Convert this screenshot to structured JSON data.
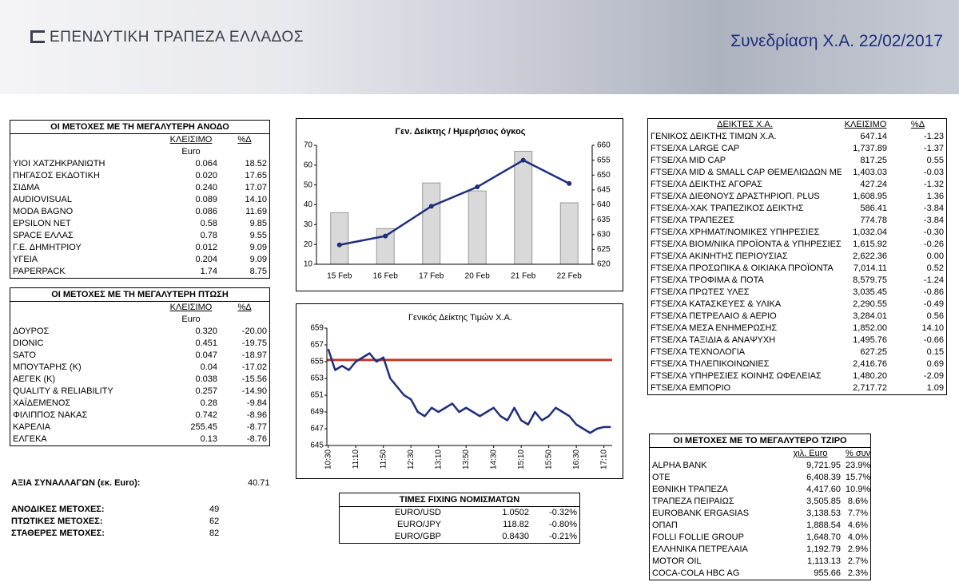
{
  "header": {
    "logo": "ΕΠΕΝΔΥΤΙΚΗ ΤΡΑΠΕΖΑ ΕΛΛΑΔΟΣ",
    "title": "Συνεδρίαση Χ.Α. 22/02/2017"
  },
  "gainers": {
    "title": "ΟΙ ΜΕΤΟΧΕΣ ΜΕ ΤΗ ΜΕΓΑΛΥΤΕΡΗ ΑΝΟΔΟ",
    "columns": [
      "ΚΛΕΙΣΙΜΟ",
      "%Δ"
    ],
    "unit": "Euro",
    "rows": [
      [
        "ΥΙΟΙ ΧΑΤΖΗΚΡΑΝΙΩΤΗ",
        "0.064",
        "18.52"
      ],
      [
        "ΠΗΓΑΣΟΣ ΕΚΔΟΤΙΚΗ",
        "0.020",
        "17.65"
      ],
      [
        "ΣΙΔΜΑ",
        "0.240",
        "17.07"
      ],
      [
        "AUDIOVISUAL",
        "0.089",
        "14.10"
      ],
      [
        "MODA BAGNO",
        "0.086",
        "11.69"
      ],
      [
        "EPSILON NET",
        "0.58",
        "9.85"
      ],
      [
        "SPACE ΕΛΛΑΣ",
        "0.78",
        "9.55"
      ],
      [
        "Γ.Ε. ΔΗΜΗΤΡΙΟΥ",
        "0.012",
        "9.09"
      ],
      [
        "ΥΓΕΙΑ",
        "0.204",
        "9.09"
      ],
      [
        "PAPERPACK",
        "1.74",
        "8.75"
      ]
    ]
  },
  "losers": {
    "title": "ΟΙ ΜΕΤΟΧΕΣ ΜΕ ΤΗ ΜΕΓΑΛΥΤΕΡΗ ΠΤΩΣΗ",
    "columns": [
      "ΚΛΕΙΣΙΜΟ",
      "%Δ"
    ],
    "unit": "Euro",
    "rows": [
      [
        "ΔΟΥΡΟΣ",
        "0.320",
        "-20.00"
      ],
      [
        "DIONIC",
        "0.451",
        "-19.75"
      ],
      [
        "SATO",
        "0.047",
        "-18.97"
      ],
      [
        "ΜΠΟΥΤΑΡΗΣ (Κ)",
        "0.04",
        "-17.02"
      ],
      [
        "ΑΕΓΕΚ (Κ)",
        "0.038",
        "-15.56"
      ],
      [
        "QUALITY & RELIABILITY",
        "0.257",
        "-14.90"
      ],
      [
        "ΧΑΪΔΕΜΕΝΟΣ",
        "0.28",
        "-9.84"
      ],
      [
        "ΦΙΛΙΠΠΟΣ ΝΑΚΑΣ",
        "0.742",
        "-8.96"
      ],
      [
        "ΚΑΡΕΛΙΑ",
        "255.45",
        "-8.77"
      ],
      [
        "ΕΛΓΕΚΑ",
        "0.13",
        "-8.76"
      ]
    ]
  },
  "stats": [
    [
      "ΑΞΙΑ ΣΥΝΑΛΛΑΓΩΝ (εκ. Euro):",
      "40.71"
    ],
    [
      "ΑΝΟΔΙΚΕΣ ΜΕΤΟΧΕΣ:",
      "49"
    ],
    [
      "ΠΤΩΤΙΚΕΣ ΜΕΤΟΧΕΣ:",
      "62"
    ],
    [
      "ΣΤΑΘΕΡΕΣ ΜΕΤΟΧΕΣ:",
      "82"
    ]
  ],
  "fixing": {
    "title": "TIMEΣ FIXING ΝΟΜΙΣΜΑΤΩΝ",
    "rows": [
      [
        "EURO/USD",
        "1.0502",
        "-0.32%"
      ],
      [
        "EURO/JPY",
        "118.82",
        "-0.80%"
      ],
      [
        "EURO/GBP",
        "0.8430",
        "-0.21%"
      ]
    ]
  },
  "indices": {
    "columns": [
      "ΔΕΙΚΤΕΣ Χ.Α.",
      "ΚΛΕΙΣΙΜΟ",
      "%Δ"
    ],
    "rows": [
      [
        "ΓΕΝΙΚΟΣ ΔΕΙΚΤΗΣ ΤΙΜΩΝ Χ.Α.",
        "647.14",
        "-1.23"
      ],
      [
        "FTSE/XA LARGE CAP",
        "1,737.89",
        "-1.37"
      ],
      [
        "FTSE/XA MID CAP",
        "817.25",
        "0.55"
      ],
      [
        "FTSE/XA MID & SMALL CAP ΘΕΜΕΛΙΩΔΩΝ ΜΕ",
        "1,403.03",
        "-0.03"
      ],
      [
        "FTSE/XA ΔΕΙΚΤΗΣ ΑΓΟΡΑΣ",
        "427.24",
        "-1.32"
      ],
      [
        "FTSE/XA ΔΙΕΘΝΟΥΣ ΔΡΑΣΤΗΡΙΟΠ. PLUS",
        "1,608.95",
        "1.36"
      ],
      [
        "FTSE/XA-XAK ΤΡΑΠΕΖΙΚΟΣ ΔΕΙΚΤΗΣ",
        "586.41",
        "-3.84"
      ],
      [
        "FTSE/XA ΤΡΑΠΕΖΕΣ",
        "774.78",
        "-3.84"
      ],
      [
        "FTSE/XA ΧΡΗΜΑΤ/ΝΟΜΙΚΕΣ ΥΠΗΡΕΣΙΕΣ",
        "1,032.04",
        "-0.30"
      ],
      [
        "FTSE/XA ΒΙΟΜ/ΝΙΚΑ ΠΡΟΪΟΝΤΑ & ΥΠΗΡΕΣΙΕΣ",
        "1,615.92",
        "-0.26"
      ],
      [
        "FTSE/XA ΑΚΙΝΗΤΗΣ ΠΕΡΙΟΥΣΙΑΣ",
        "2,622.36",
        "0.00"
      ],
      [
        "FTSE/XA ΠΡΟΣΩΠΙΚΑ & ΟΙΚΙΑΚΑ ΠΡΟΪΟΝΤΑ",
        "7,014.11",
        "0.52"
      ],
      [
        "FTSE/XA ΤΡΟΦΙΜΑ & ΠΟΤΑ",
        "8,579.75",
        "-1.24"
      ],
      [
        "FTSE/XA ΠΡΩΤΕΣ ΥΛΕΣ",
        "3,035.45",
        "-0.86"
      ],
      [
        "FTSE/XA ΚΑΤΑΣΚΕΥΕΣ & ΥΛΙΚΑ",
        "2,290.55",
        "-0.49"
      ],
      [
        "FTSE/XA ΠΕΤΡΕΛΑΙΟ & ΑΕΡΙΟ",
        "3,284.01",
        "0.56"
      ],
      [
        "FTSE/XA ΜΕΣΑ ΕΝΗΜΕΡΩΣΗΣ",
        "1,852.00",
        "14.10"
      ],
      [
        "FTSE/XA ΤΑΞΙΔΙΑ & ΑΝΑΨΥΧΗ",
        "1,495.76",
        "-0.66"
      ],
      [
        "FTSE/XA ΤΕΧΝΟΛΟΓΙΑ",
        "627.25",
        "0.15"
      ],
      [
        "FTSE/XA ΤΗΛΕΠΙΚΟΙΝΩΝΙΕΣ",
        "2,416.76",
        "0.69"
      ],
      [
        "FTSE/XA ΥΠΗΡΕΣΙΕΣ ΚΟΙΝΗΣ ΩΦΕΛΕΙΑΣ",
        "1,480.20",
        "-2.09"
      ],
      [
        "FTSE/XA ΕΜΠΟΡΙΟ",
        "2,717.72",
        "1.09"
      ]
    ]
  },
  "turnover": {
    "title": "ΟΙ ΜΕΤΟΧΕΣ ΜΕ ΤΟ ΜΕΓΑΛΥΤΕΡΟ ΤΖΙΡΟ",
    "columns": [
      "χιλ. Euro",
      "% συν."
    ],
    "rows": [
      [
        "ALPHA BANK",
        "9,721.95",
        "23.9%"
      ],
      [
        "ΟΤΕ",
        "6,408.39",
        "15.7%"
      ],
      [
        "ΕΘΝΙΚΗ ΤΡΑΠΕΖΑ",
        "4,417.60",
        "10.9%"
      ],
      [
        "ΤΡΑΠΕΖΑ ΠΕΙΡΑΙΩΣ",
        "3,505.85",
        "8.6%"
      ],
      [
        "EUROBANK ERGASIAS",
        "3,138.53",
        "7.7%"
      ],
      [
        "ΟΠΑΠ",
        "1,888.54",
        "4.6%"
      ],
      [
        "FOLLI FOLLIE GROUP",
        "1,648.70",
        "4.0%"
      ],
      [
        "ΕΛΛΗΝΙΚΑ ΠΕΤΡΕΛΑΙΑ",
        "1,192.79",
        "2.9%"
      ],
      [
        "MOTOR OIL",
        "1,113.13",
        "2.7%"
      ],
      [
        "COCA-COLA HBC AG",
        "955.66",
        "2.3%"
      ]
    ]
  },
  "chart_data": [
    {
      "type": "bar_line",
      "title": "Γεν. Δείκτης / Ημερήσιος όγκος",
      "categories": [
        "15 Feb",
        "16 Feb",
        "17 Feb",
        "20 Feb",
        "21 Feb",
        "22 Feb"
      ],
      "series": [
        {
          "color": "#d9d9d9",
          "values": [
            36,
            28,
            51,
            47,
            67,
            41
          ]
        },
        {
          "color": "#1f2d7b",
          "axis": "y2",
          "values": [
            626.5,
            629.5,
            639.5,
            646,
            655,
            647.14
          ]
        }
      ],
      "ylim": [
        10,
        70
      ],
      "yticks": [
        10,
        20,
        30,
        40,
        50,
        60,
        70
      ],
      "y2lim": [
        620,
        660
      ],
      "y2ticks": [
        620,
        625,
        630,
        635,
        640,
        645,
        650,
        655,
        660
      ]
    },
    {
      "type": "line",
      "title": "Γενικός Δείκτης Τιμών Χ.Α.",
      "x": [
        "10:30",
        "10:40",
        "10:50",
        "11:00",
        "11:10",
        "11:20",
        "11:30",
        "11:40",
        "11:50",
        "12:00",
        "12:10",
        "12:20",
        "12:30",
        "12:40",
        "12:50",
        "13:00",
        "13:10",
        "13:20",
        "13:30",
        "13:40",
        "13:50",
        "14:00",
        "14:10",
        "14:20",
        "14:30",
        "14:40",
        "14:50",
        "15:00",
        "15:10",
        "15:20",
        "15:30",
        "15:40",
        "15:50",
        "16:00",
        "16:10",
        "16:20",
        "16:30",
        "16:40",
        "16:50",
        "17:00",
        "17:10",
        "17:20"
      ],
      "series": [
        {
          "color": "#1f2d7b",
          "values": [
            656.5,
            654,
            654.5,
            654,
            655,
            655.5,
            656,
            655,
            655.5,
            653,
            652,
            651,
            650.5,
            649,
            648.5,
            649.5,
            649,
            649.5,
            650,
            649,
            649.5,
            649,
            648.5,
            649,
            649.5,
            648.5,
            648,
            649.5,
            648,
            647.5,
            649,
            648,
            648.5,
            649.5,
            649,
            648.5,
            647.5,
            647,
            646.5,
            647,
            647.2,
            647.2
          ]
        }
      ],
      "reference_line": {
        "value": 655.2,
        "color": "#c0392b"
      },
      "xlim": [
        "10:28",
        "17:22"
      ],
      "xticks": [
        "10:30",
        "11:10",
        "11:50",
        "12:30",
        "13:10",
        "13:50",
        "14:30",
        "15:10",
        "15:50",
        "16:30",
        "17:10"
      ],
      "ylim": [
        645,
        659
      ],
      "yticks": [
        645,
        647,
        649,
        651,
        653,
        655,
        657,
        659
      ]
    }
  ]
}
